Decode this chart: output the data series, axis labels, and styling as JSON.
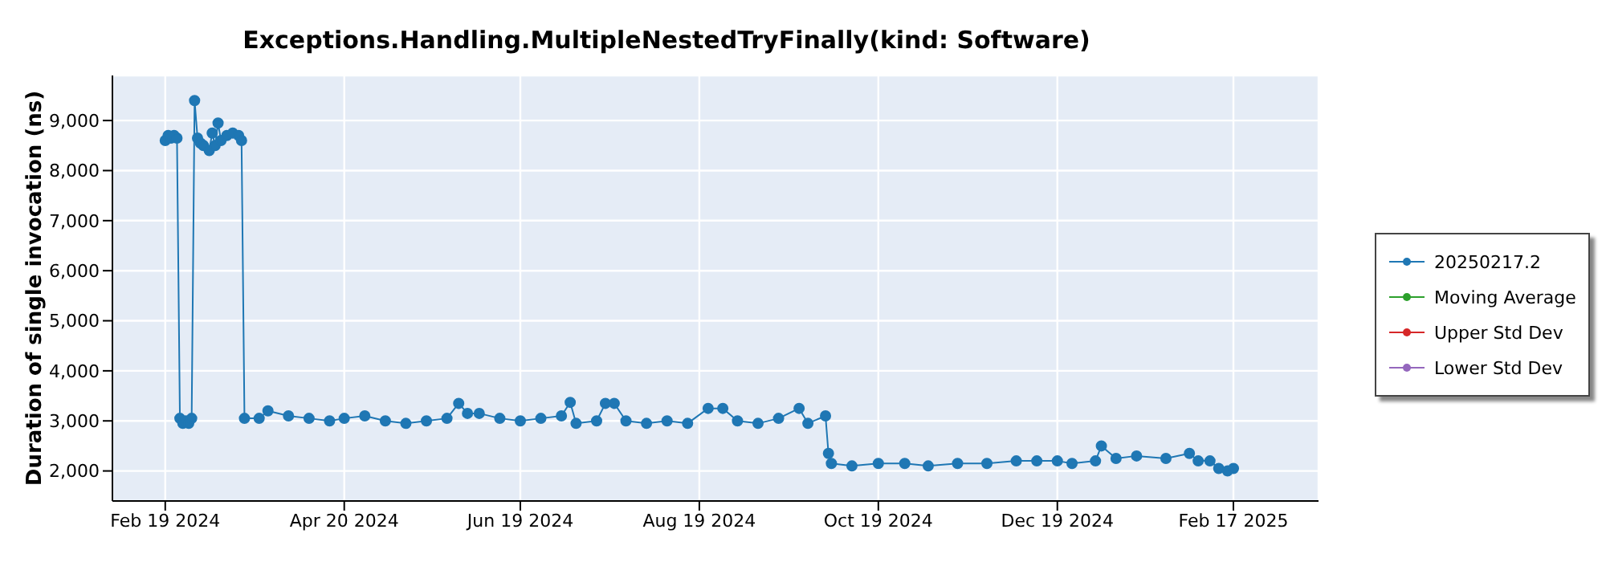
{
  "chart_data": {
    "type": "line",
    "title": "Exceptions.Handling.MultipleNestedTryFinally(kind: Software)",
    "ylabel": "Duration of single invocation (ns)",
    "x": [
      "2024-02-19",
      "2024-02-20",
      "2024-02-21",
      "2024-02-22",
      "2024-02-23",
      "2024-02-24",
      "2024-02-25",
      "2024-02-26",
      "2024-02-27",
      "2024-02-28",
      "2024-02-29",
      "2024-03-01",
      "2024-03-02",
      "2024-03-03",
      "2024-03-05",
      "2024-03-06",
      "2024-03-07",
      "2024-03-08",
      "2024-03-09",
      "2024-03-11",
      "2024-03-13",
      "2024-03-15",
      "2024-03-16",
      "2024-03-17",
      "2024-03-22",
      "2024-03-25",
      "2024-04-01",
      "2024-04-08",
      "2024-04-15",
      "2024-04-20",
      "2024-04-27",
      "2024-05-04",
      "2024-05-11",
      "2024-05-18",
      "2024-05-25",
      "2024-05-29",
      "2024-06-01",
      "2024-06-05",
      "2024-06-12",
      "2024-06-19",
      "2024-06-26",
      "2024-07-03",
      "2024-07-06",
      "2024-07-08",
      "2024-07-15",
      "2024-07-18",
      "2024-07-21",
      "2024-07-25",
      "2024-08-01",
      "2024-08-08",
      "2024-08-15",
      "2024-08-22",
      "2024-08-27",
      "2024-09-01",
      "2024-09-08",
      "2024-09-15",
      "2024-09-22",
      "2024-09-25",
      "2024-10-01",
      "2024-10-02",
      "2024-10-03",
      "2024-10-10",
      "2024-10-19",
      "2024-10-28",
      "2024-11-05",
      "2024-11-15",
      "2024-11-25",
      "2024-12-05",
      "2024-12-12",
      "2024-12-19",
      "2024-12-24",
      "2025-01-01",
      "2025-01-03",
      "2025-01-08",
      "2025-01-15",
      "2025-01-25",
      "2025-02-02",
      "2025-02-05",
      "2025-02-09",
      "2025-02-12",
      "2025-02-15",
      "2025-02-17"
    ],
    "series": [
      {
        "name": "20250217.2",
        "color": "#1f77b4",
        "values": [
          8600,
          8700,
          8650,
          8700,
          8650,
          3050,
          2950,
          3000,
          2950,
          3050,
          9400,
          8650,
          8550,
          8500,
          8400,
          8750,
          8500,
          8950,
          8600,
          8700,
          8750,
          8700,
          8600,
          3050,
          3050,
          3200,
          3100,
          3050,
          3000,
          3050,
          3100,
          3000,
          2950,
          3000,
          3050,
          3350,
          3150,
          3150,
          3050,
          3000,
          3050,
          3100,
          3370,
          2950,
          3000,
          3350,
          3350,
          3000,
          2950,
          3000,
          2950,
          3250,
          3250,
          3000,
          2950,
          3050,
          3250,
          2950,
          3100,
          2350,
          2150,
          2100,
          2150,
          2150,
          2100,
          2150,
          2150,
          2200,
          2200,
          2200,
          2150,
          2200,
          2500,
          2250,
          2300,
          2250,
          2350,
          2200,
          2200,
          2050,
          2000,
          2050
        ]
      },
      {
        "name": "Moving Average",
        "color": "#2ca02c",
        "values": [
          null,
          null,
          null,
          null,
          null,
          null,
          null,
          null,
          null,
          null,
          null,
          null,
          null,
          null,
          null,
          null,
          null,
          null,
          null,
          null,
          null,
          null,
          null,
          null,
          null,
          null,
          null,
          null,
          null,
          null,
          null,
          null,
          null,
          null,
          null,
          null,
          null,
          null,
          null,
          null,
          null,
          null,
          null,
          null,
          null,
          null,
          null,
          null,
          null,
          null,
          null,
          null,
          null,
          null,
          null,
          null,
          null,
          null,
          null,
          null,
          null,
          null,
          null,
          null,
          null,
          null,
          null,
          null,
          null,
          null,
          null,
          null,
          null,
          null,
          null,
          null,
          null,
          null,
          null,
          null,
          null,
          null
        ]
      },
      {
        "name": "Upper Std Dev",
        "color": "#d62728",
        "values": [
          null,
          null,
          null,
          null,
          null,
          null,
          null,
          null,
          null,
          null,
          null,
          null,
          null,
          null,
          null,
          null,
          null,
          null,
          null,
          null,
          null,
          null,
          null,
          null,
          null,
          null,
          null,
          null,
          null,
          null,
          null,
          null,
          null,
          null,
          null,
          null,
          null,
          null,
          null,
          null,
          null,
          null,
          null,
          null,
          null,
          null,
          null,
          null,
          null,
          null,
          null,
          null,
          null,
          null,
          null,
          null,
          null,
          null,
          null,
          null,
          null,
          null,
          null,
          null,
          null,
          null,
          null,
          null,
          null,
          null,
          null,
          null,
          null,
          null,
          null,
          null,
          null,
          null,
          null,
          null,
          null,
          null
        ]
      },
      {
        "name": "Lower Std Dev",
        "color": "#9467bd",
        "values": [
          null,
          null,
          null,
          null,
          null,
          null,
          null,
          null,
          null,
          null,
          null,
          null,
          null,
          null,
          null,
          null,
          null,
          null,
          null,
          null,
          null,
          null,
          null,
          null,
          null,
          null,
          null,
          null,
          null,
          null,
          null,
          null,
          null,
          null,
          null,
          null,
          null,
          null,
          null,
          null,
          null,
          null,
          null,
          null,
          null,
          null,
          null,
          null,
          null,
          null,
          null,
          null,
          null,
          null,
          null,
          null,
          null,
          null,
          null,
          null,
          null,
          null,
          null,
          null,
          null,
          null,
          null,
          null,
          null,
          null,
          null,
          null,
          null,
          null,
          null,
          null,
          null,
          null,
          null,
          null,
          null,
          null
        ]
      }
    ],
    "xlim": [
      "2024-02-01",
      "2025-03-18"
    ],
    "xticks": [
      {
        "value": "2024-02-19",
        "label": "Feb 19 2024"
      },
      {
        "value": "2024-04-20",
        "label": "Apr 20 2024"
      },
      {
        "value": "2024-06-19",
        "label": "Jun 19 2024"
      },
      {
        "value": "2024-08-19",
        "label": "Aug 19 2024"
      },
      {
        "value": "2024-10-19",
        "label": "Oct 19 2024"
      },
      {
        "value": "2024-12-19",
        "label": "Dec 19 2024"
      },
      {
        "value": "2025-02-17",
        "label": "Feb 17 2025"
      }
    ],
    "ylim": [
      1400,
      9900
    ],
    "yticks": [
      {
        "value": 2000,
        "label": "2,000"
      },
      {
        "value": 3000,
        "label": "3,000"
      },
      {
        "value": 4000,
        "label": "4,000"
      },
      {
        "value": 5000,
        "label": "5,000"
      },
      {
        "value": 6000,
        "label": "6,000"
      },
      {
        "value": 7000,
        "label": "7,000"
      },
      {
        "value": 8000,
        "label": "8,000"
      },
      {
        "value": 9000,
        "label": "9,000"
      }
    ],
    "grid": true,
    "legend": "right",
    "marker": "circle",
    "line_style": "solid"
  }
}
